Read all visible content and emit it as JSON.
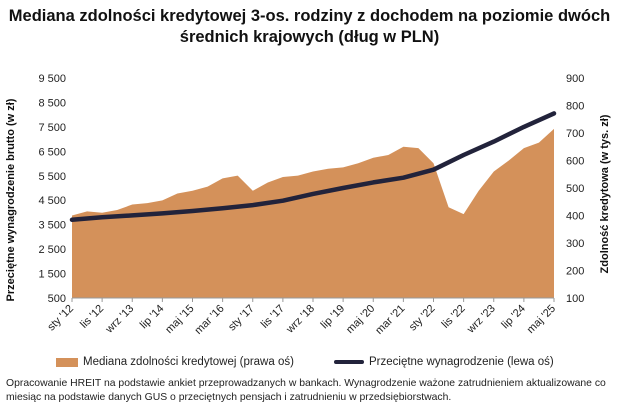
{
  "title": "Mediana zdolności kredytowej 3-os. rodziny z dochodem na poziomie dwóch średnich krajowych (dług w PLN)",
  "colors": {
    "area": "#d4915a",
    "line": "#22233b",
    "axis": "#999999"
  },
  "chart_data": {
    "type": "area+line",
    "categories": [
      "sty '12",
      "lis '12",
      "wrz '13",
      "lip '14",
      "maj '15",
      "mar '16",
      "sty '17",
      "lis '17",
      "wrz '18",
      "lip '19",
      "maj '20",
      "mar '21",
      "sty '22",
      "lis '22",
      "wrz '23",
      "lip '24",
      "maj '25"
    ],
    "ylabel_left": "Przeciętne wynagrodzenie brutto (w zł)",
    "ylabel_right": "Zdolność kredytowa (w tys. zł)",
    "ylim_left": [
      500,
      9500
    ],
    "ylim_right": [
      100,
      900
    ],
    "yticks_left": [
      "9 500",
      "8 500",
      "7 500",
      "6 500",
      "5 500",
      "4 500",
      "3 500",
      "2 500",
      "1 500",
      "500"
    ],
    "yticks_right": [
      "900",
      "800",
      "700",
      "600",
      "500",
      "400",
      "300",
      "200",
      "100"
    ],
    "legend_placement": "bottom",
    "series": [
      {
        "name": "Mediana zdolności kredytowej (prawa oś)",
        "kind": "area",
        "axis": "right",
        "points": [
          [
            0,
            400
          ],
          [
            0.5,
            415
          ],
          [
            1,
            410
          ],
          [
            1.5,
            420
          ],
          [
            2,
            440
          ],
          [
            2.5,
            445
          ],
          [
            3,
            455
          ],
          [
            3.5,
            480
          ],
          [
            4,
            490
          ],
          [
            4.5,
            505
          ],
          [
            5,
            535
          ],
          [
            5.5,
            545
          ],
          [
            6,
            490
          ],
          [
            6.5,
            520
          ],
          [
            7,
            540
          ],
          [
            7.5,
            545
          ],
          [
            8,
            560
          ],
          [
            8.5,
            570
          ],
          [
            9,
            575
          ],
          [
            9.5,
            590
          ],
          [
            10,
            610
          ],
          [
            10.5,
            620
          ],
          [
            11,
            650
          ],
          [
            11.5,
            645
          ],
          [
            12,
            590
          ],
          [
            12.5,
            430
          ],
          [
            13,
            405
          ],
          [
            13.5,
            490
          ],
          [
            14,
            560
          ],
          [
            14.5,
            600
          ],
          [
            15,
            645
          ],
          [
            15.5,
            665
          ],
          [
            16,
            715
          ]
        ]
      },
      {
        "name": "Przeciętne wynagrodzenie (lewa ośt)",
        "kind": "line",
        "axis": "left",
        "points": [
          [
            0,
            3700
          ],
          [
            1,
            3800
          ],
          [
            2,
            3880
          ],
          [
            3,
            3960
          ],
          [
            4,
            4060
          ],
          [
            5,
            4170
          ],
          [
            6,
            4300
          ],
          [
            7,
            4480
          ],
          [
            8,
            4760
          ],
          [
            9,
            5000
          ],
          [
            10,
            5230
          ],
          [
            11,
            5420
          ],
          [
            12,
            5750
          ],
          [
            13,
            6350
          ],
          [
            14,
            6900
          ],
          [
            15,
            7500
          ],
          [
            16,
            8050
          ]
        ]
      }
    ]
  },
  "legend": {
    "area_label": "Mediana zdolności kredytowej (prawa oś)",
    "line_label": "Przeciętne wynagrodzenie (lewa oś)"
  },
  "source_note": "Opracowanie HREIT na podstawie ankiet przeprowadzanych w bankach. Wynagrodzenie ważone zatrudnieniem aktualizowane co miesiąc na podstawie danych GUS o przeciętnych pensjach i zatrudnieniu w przedsiębiorstwach."
}
